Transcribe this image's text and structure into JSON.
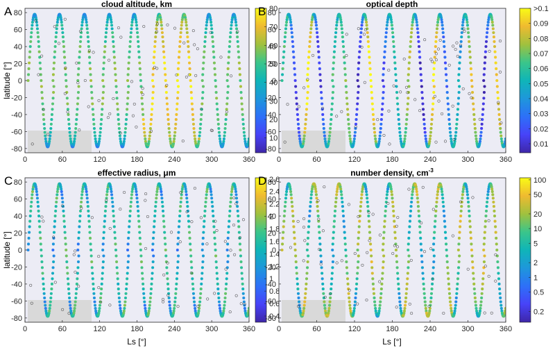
{
  "chart_data": [
    {
      "type": "scatter",
      "panel_letter": "A",
      "title": "cloud altitude, km",
      "xlabel": "",
      "ylabel": "latitude [°]",
      "xlim": [
        0,
        360
      ],
      "ylim": [
        -85,
        85
      ],
      "xticks": [
        0,
        60,
        120,
        180,
        240,
        300,
        360
      ],
      "yticks": [
        -80,
        -60,
        -40,
        -20,
        0,
        20,
        40,
        60,
        80
      ],
      "colorbar": {
        "scale": "linear",
        "min": 2,
        "max": 80,
        "ticks": [
          "10",
          "20",
          "30",
          "40",
          "50",
          "60",
          "70",
          "80"
        ],
        "tick_values": [
          10,
          20,
          30,
          40,
          50,
          60,
          70,
          80
        ]
      }
    },
    {
      "type": "scatter",
      "panel_letter": "B",
      "title": "optical depth",
      "xlabel": "",
      "ylabel": "",
      "xlim": [
        0,
        360
      ],
      "ylim": [
        -85,
        85
      ],
      "xticks": [
        0,
        60,
        120,
        180,
        240,
        300,
        360
      ],
      "yticks": [
        -80,
        -60,
        -40,
        -20,
        0,
        20,
        40,
        60,
        80
      ],
      "colorbar": {
        "scale": "linear",
        "min": 0.004,
        "max": 0.1,
        "ticks": [
          "0.01",
          "0.02",
          "0.03",
          "0.04",
          "0.05",
          "0.06",
          "0.07",
          "0.08",
          "0.09",
          ">0.1"
        ],
        "tick_values": [
          0.01,
          0.02,
          0.03,
          0.04,
          0.05,
          0.06,
          0.07,
          0.08,
          0.09,
          0.1
        ]
      }
    },
    {
      "type": "scatter",
      "panel_letter": "C",
      "title": "effective radius, μm",
      "xlabel": "Ls [°]",
      "ylabel": "latitude [°]",
      "xlim": [
        0,
        360
      ],
      "ylim": [
        -85,
        85
      ],
      "xticks": [
        0,
        60,
        120,
        180,
        240,
        300,
        360
      ],
      "yticks": [
        -80,
        -60,
        -40,
        -20,
        0,
        20,
        40,
        60,
        80
      ],
      "colorbar": {
        "scale": "linear",
        "min": 0.3,
        "max": 2.62,
        "ticks": [
          "0.4",
          "0.6",
          "0.8",
          "1",
          "1.2",
          "1.4",
          "1.6",
          "1.8",
          "2",
          "2.2",
          "2.4",
          "2.6"
        ],
        "tick_values": [
          0.4,
          0.6,
          0.8,
          1.0,
          1.2,
          1.4,
          1.6,
          1.8,
          2.0,
          2.2,
          2.4,
          2.6
        ]
      }
    },
    {
      "type": "scatter",
      "panel_letter": "D",
      "title": "number density, cm",
      "title_superscript": "-3",
      "xlabel": "Ls [°]",
      "ylabel": "",
      "xlim": [
        0,
        360
      ],
      "ylim": [
        -85,
        85
      ],
      "xticks": [
        0,
        60,
        120,
        180,
        240,
        300,
        360
      ],
      "yticks": [
        -80,
        -60,
        -40,
        -20,
        0,
        20,
        40,
        60,
        80
      ],
      "colorbar": {
        "scale": "log",
        "min": 0.12,
        "max": 110,
        "ticks": [
          "0.2",
          "0.5",
          "1",
          "2",
          "5",
          "10",
          "20",
          "50",
          "100"
        ],
        "tick_values": [
          0.2,
          0.5,
          1,
          2,
          5,
          10,
          20,
          50,
          100
        ]
      }
    }
  ],
  "colors": {
    "cmap": [
      "#3e26a8",
      "#4743f8",
      "#2d70f8",
      "#1e97db",
      "#0fb5b8",
      "#3bc58a",
      "#a0c13e",
      "#efba30",
      "#f9fb15"
    ],
    "frame": "#262626",
    "background_band": "#e8e8f4",
    "gray_region": "#d8d8d8"
  }
}
